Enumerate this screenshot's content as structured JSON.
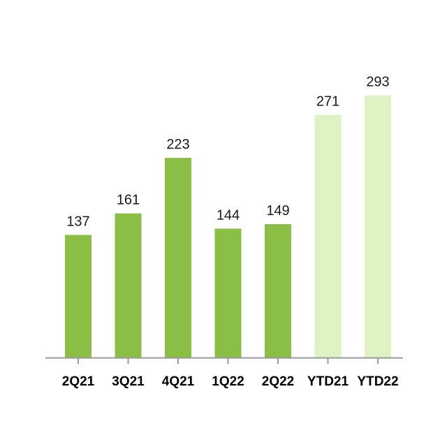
{
  "chart_data": {
    "type": "bar",
    "title": "",
    "xlabel": "",
    "ylabel": "",
    "categories": [
      "2Q21",
      "3Q21",
      "4Q21",
      "1Q22",
      "2Q22",
      "YTD21",
      "YTD22"
    ],
    "values": [
      137,
      161,
      223,
      144,
      149,
      271,
      293
    ],
    "ylim": [
      0,
      300
    ],
    "grid": false,
    "legend": "none",
    "data_labels": true,
    "colors": {
      "quarter_bar": "#8bbe44",
      "ytd_bar": "#dff2c2",
      "axis": "#999999"
    },
    "bar_color_groups": [
      "quarter",
      "quarter",
      "quarter",
      "quarter",
      "quarter",
      "ytd",
      "ytd"
    ]
  }
}
